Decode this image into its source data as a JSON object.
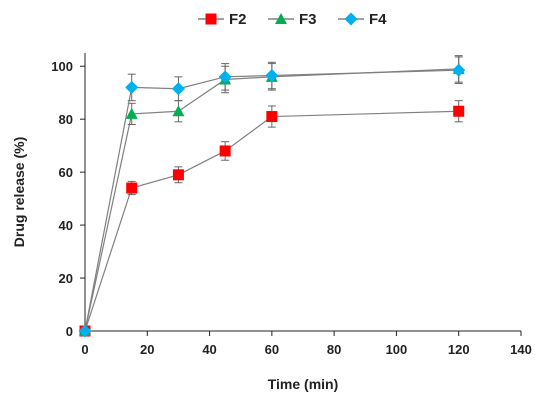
{
  "chart_data": {
    "type": "line",
    "xlabel": "Time (min)",
    "ylabel": "Drug release (%)",
    "xlim": [
      0,
      140
    ],
    "ylim": [
      0,
      105
    ],
    "xticks": [
      0,
      20,
      40,
      60,
      80,
      100,
      120,
      140
    ],
    "yticks": [
      0,
      20,
      40,
      60,
      80,
      100
    ],
    "grid": false,
    "legend_position": "top-center",
    "x": [
      0,
      15,
      30,
      45,
      60,
      120
    ],
    "series": [
      {
        "name": "F2",
        "color": "#ff0000",
        "marker": "square",
        "values": [
          0,
          54,
          59,
          68,
          81,
          83
        ],
        "errors": [
          0,
          2.5,
          3,
          3.5,
          4,
          4
        ]
      },
      {
        "name": "F3",
        "color": "#00b050",
        "marker": "triangle",
        "values": [
          0,
          82,
          83,
          95,
          96,
          99
        ],
        "errors": [
          0,
          4,
          4,
          5,
          5,
          5
        ]
      },
      {
        "name": "F4",
        "color": "#00b0f0",
        "marker": "diamond",
        "values": [
          0,
          92,
          91.5,
          96,
          96.5,
          98.5
        ],
        "errors": [
          0,
          5,
          4.5,
          5,
          5,
          5
        ]
      }
    ]
  }
}
